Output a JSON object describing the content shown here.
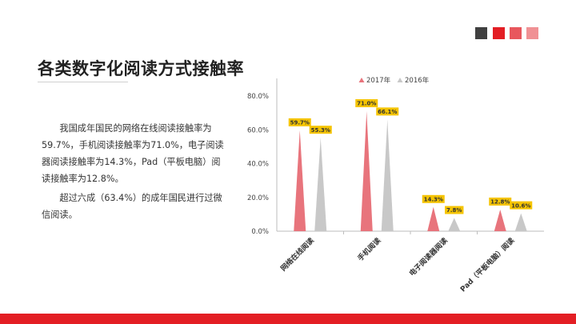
{
  "header": {
    "title": "各类数字化阅读方式接触率",
    "deco_colors": [
      "#404040",
      "#e31e24",
      "#e8575d",
      "#f09194"
    ]
  },
  "body": {
    "paragraph1": "我国成年国民的网络在线阅读接触率为59.7%，手机阅读接触率为71.0%，电子阅读器阅读接触率为14.3%，Pad（平板电脑）阅读接触率为12.8%。",
    "paragraph2": "超过六成（63.4%）的成年国民进行过微信阅读。"
  },
  "chart_data": {
    "type": "bar",
    "categories": [
      "网络在线阅读",
      "手机阅读",
      "电子阅读器阅读",
      "Pad（平板电脑）阅读"
    ],
    "series": [
      {
        "name": "2017年",
        "values": [
          59.7,
          71.0,
          14.3,
          12.8
        ],
        "labels": [
          "59.7%",
          "71.0%",
          "14.3%",
          "12.8%"
        ],
        "color": "#e8747c"
      },
      {
        "name": "2016年",
        "values": [
          55.3,
          66.1,
          7.8,
          10.6
        ],
        "labels": [
          "55.3%",
          "66.1%",
          "7.8%",
          "10.6%"
        ],
        "color": "#c8c8c8"
      }
    ],
    "yticks": [
      "0.0%",
      "20.0%",
      "40.0%",
      "60.0%",
      "80.0%"
    ],
    "ytick_values": [
      0,
      20,
      40,
      60,
      80
    ],
    "ylim": [
      0,
      80
    ],
    "legend_position": "top",
    "label_color": "#f5c400",
    "mark_shape": "triangle"
  },
  "footer": {
    "color": "#e31e24"
  }
}
